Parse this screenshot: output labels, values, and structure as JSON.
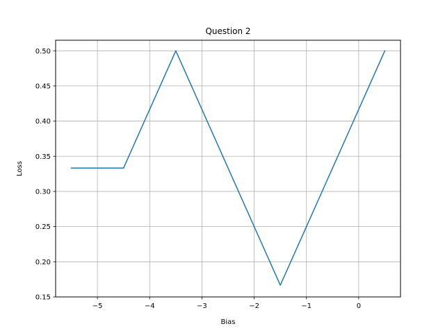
{
  "chart_data": {
    "type": "line",
    "title": "Question 2",
    "xlabel": "Bias",
    "ylabel": "Loss",
    "xlim": [
      -5.8,
      0.8
    ],
    "ylim": [
      0.15,
      0.515
    ],
    "x_ticks": [
      -5,
      -4,
      -3,
      -2,
      -1,
      0
    ],
    "x_tick_labels": [
      "−5",
      "−4",
      "−3",
      "−2",
      "−1",
      "0"
    ],
    "y_ticks": [
      0.15,
      0.2,
      0.25,
      0.3,
      0.35,
      0.4,
      0.45,
      0.5
    ],
    "y_tick_labels": [
      "0.15",
      "0.20",
      "0.25",
      "0.30",
      "0.35",
      "0.40",
      "0.45",
      "0.50"
    ],
    "grid": true,
    "series": [
      {
        "color": "#1f77b4",
        "x": [
          -5.5,
          -4.5,
          -3.5,
          -2.5,
          -1.5,
          -0.5,
          0.5
        ],
        "y": [
          0.3333,
          0.3333,
          0.5,
          0.3333,
          0.1667,
          0.3333,
          0.5
        ]
      }
    ]
  }
}
